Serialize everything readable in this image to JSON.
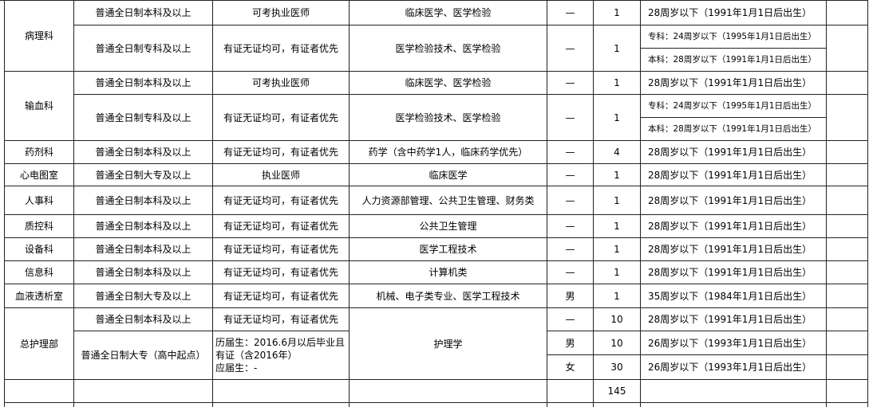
{
  "table": {
    "cells": [
      "病理科",
      "普通全日制本科及以上",
      "可考执业医师",
      "临床医学、医学检验",
      "—",
      "1",
      "28周岁以下（1991年1月1日后出生）",
      "普通全日制专科及以上",
      "有证无证均可，有证者优先",
      "医学检验技术、医学检验",
      "—",
      "1",
      "专科：24周岁以下（1995年1月1日后出生）",
      "本科：28周岁以下（1991年1月1日后出生）",
      "输血科",
      "普通全日制本科及以上",
      "可考执业医师",
      "临床医学、医学检验",
      "—",
      "1",
      "28周岁以下（1991年1月1日后出生）",
      "普通全日制专科及以上",
      "有证无证均可，有证者优先",
      "医学检验技术、医学检验",
      "—",
      "1",
      "专科：24周岁以下（1995年1月1日后出生）",
      "本科：28周岁以下（1991年1月1日后出生）",
      "药剂科",
      "普通全日制本科及以上",
      "有证无证均可，有证者优先",
      "药学（含中药学1人，临床药学优先）",
      "—",
      "4",
      "28周岁以下（1991年1月1日后出生）",
      "心电图室",
      "普通全日制大专及以上",
      "执业医师",
      "临床医学",
      "—",
      "1",
      "28周岁以下（1991年1月1日后出生）",
      "人事科",
      "普通全日制本科及以上",
      "有证无证均可，有证者优先",
      "人力资源部管理、公共卫生管理、财务类",
      "—",
      "1",
      "28周岁以下（1991年1月1日后出生）",
      "质控科",
      "普通全日制本科及以上",
      "有证无证均可，有证者优先",
      "公共卫生管理",
      "—",
      "1",
      "28周岁以下（1991年1月1日后出生）",
      "设备科",
      "普通全日制本科及以上",
      "有证无证均可，有证者优先",
      "医学工程技术",
      "—",
      "1",
      "28周岁以下（1991年1月1日后出生）",
      "信息科",
      "普通全日制本科及以上",
      "有证无证均可，有证者优先",
      "计算机类",
      "—",
      "1",
      "28周岁以下（1991年1月1日后出生）",
      "血液透析室",
      "普通全日制大专及以上",
      "有证无证均可，有证者优先",
      "机械、电子类专业、医学工程技术",
      "男",
      "1",
      "35周岁以下（1984年1月1日后出生）",
      "总护理部",
      "普通全日制本科及以上",
      "有证无证均可，有证者优先",
      "护理学",
      "—",
      "10",
      "28周岁以下（1991年1月1日后出生）",
      "普通全日制大专（高中起点）",
      [
        "历届生：2016.6月以后毕业且有证（含2016年）",
        "应届生：-"
      ],
      "男",
      "10",
      "26周岁以下（1993年1月1日后出生）",
      "女",
      "30",
      "26周岁以下（1993年1月1日后出生）",
      "145"
    ]
  }
}
